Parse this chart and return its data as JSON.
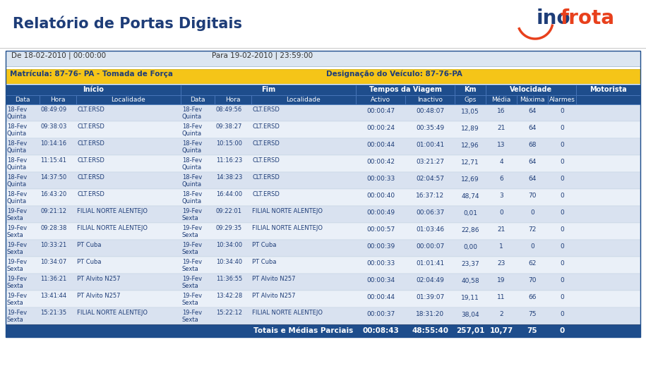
{
  "title": "Relatório de Portas Digitais",
  "date_range_left": "De 18-02-2010 | 00:00:00",
  "date_range_right": "Para 19-02-2010 | 23:59:00",
  "matricula": "Matrícula: 87-76- PA - Tomada de Força",
  "designacao": "Designação do Veículo: 87-76-PA",
  "rows": [
    [
      "18-Fev",
      "Quinta",
      "08:49:09",
      "CLT.ERSD",
      "18-Fev",
      "Quinta",
      "08:49:56",
      "CLT.ERSD",
      "00:00:47",
      "00:48:07",
      "13,05",
      "16",
      "64",
      "0"
    ],
    [
      "18-Fev",
      "Quinta",
      "09:38:03",
      "CLT.ERSD",
      "18-Fev",
      "Quinta",
      "09:38:27",
      "CLT.ERSD",
      "00:00:24",
      "00:35:49",
      "12,89",
      "21",
      "64",
      "0"
    ],
    [
      "18-Fev",
      "Quinta",
      "10:14:16",
      "CLT.ERSD",
      "18-Fev",
      "Quinta",
      "10:15:00",
      "CLT.ERSD",
      "00:00:44",
      "01:00:41",
      "12,96",
      "13",
      "68",
      "0"
    ],
    [
      "18-Fev",
      "Quinta",
      "11:15:41",
      "CLT.ERSD",
      "18-Fev",
      "Quinta",
      "11:16:23",
      "CLT.ERSD",
      "00:00:42",
      "03:21:27",
      "12,71",
      "4",
      "64",
      "0"
    ],
    [
      "18-Fev",
      "Quinta",
      "14:37:50",
      "CLT.ERSD",
      "18-Fev",
      "Quinta",
      "14:38:23",
      "CLT.ERSD",
      "00:00:33",
      "02:04:57",
      "12,69",
      "6",
      "64",
      "0"
    ],
    [
      "18-Fev",
      "Quinta",
      "16:43:20",
      "CLT.ERSD",
      "18-Fev",
      "Quinta",
      "16:44:00",
      "CLT.ERSD",
      "00:00:40",
      "16:37:12",
      "48,74",
      "3",
      "70",
      "0"
    ],
    [
      "19-Fev",
      "Sexta",
      "09:21:12",
      "FILIAL NORTE ALENTEJO",
      "19-Fev",
      "Sexta",
      "09:22:01",
      "FILIAL NORTE ALENTEJO",
      "00:00:49",
      "00:06:37",
      "0,01",
      "0",
      "0",
      "0"
    ],
    [
      "19-Fev",
      "Sexta",
      "09:28:38",
      "FILIAL NORTE ALENTEJO",
      "19-Fev",
      "Sexta",
      "09:29:35",
      "FILIAL NORTE ALENTEJO",
      "00:00:57",
      "01:03:46",
      "22,86",
      "21",
      "72",
      "0"
    ],
    [
      "19-Fev",
      "Sexta",
      "10:33:21",
      "PT Cuba",
      "19-Fev",
      "Sexta",
      "10:34:00",
      "PT Cuba",
      "00:00:39",
      "00:00:07",
      "0,00",
      "1",
      "0",
      "0"
    ],
    [
      "19-Fev",
      "Sexta",
      "10:34:07",
      "PT Cuba",
      "19-Fev",
      "Sexta",
      "10:34:40",
      "PT Cuba",
      "00:00:33",
      "01:01:41",
      "23,37",
      "23",
      "62",
      "0"
    ],
    [
      "19-Fev",
      "Sexta",
      "11:36:21",
      "PT Alvito N257",
      "19-Fev",
      "Sexta",
      "11:36:55",
      "PT Alvito N257",
      "00:00:34",
      "02:04:49",
      "40,58",
      "19",
      "70",
      "0"
    ],
    [
      "19-Fev",
      "Sexta",
      "13:41:44",
      "PT Alvito N257",
      "19-Fev",
      "Sexta",
      "13:42:28",
      "PT Alvito N257",
      "00:00:44",
      "01:39:07",
      "19,11",
      "11",
      "66",
      "0"
    ],
    [
      "19-Fev",
      "Sexta",
      "15:21:35",
      "FILIAL NORTE ALENTEJO",
      "19-Fev",
      "Sexta",
      "15:22:12",
      "FILIAL NORTE ALENTEJO",
      "00:00:37",
      "18:31:20",
      "38,04",
      "2",
      "75",
      "0"
    ]
  ],
  "totals_label": "Totais e Médias Parciais",
  "totals_values": [
    "00:08:43",
    "48:55:40",
    "257,01",
    "10,77",
    "75",
    "0"
  ],
  "bg_color": "#ffffff",
  "header_bg": "#1e4d8c",
  "header_text": "#ffffff",
  "row_odd_bg": "#d9e2f0",
  "row_even_bg": "#eaf0f8",
  "matricula_bg": "#f5c518",
  "date_range_bg": "#dce6f1",
  "totals_bg": "#1e4d8c",
  "title_color": "#1e3d78",
  "text_color": "#1e3d78"
}
